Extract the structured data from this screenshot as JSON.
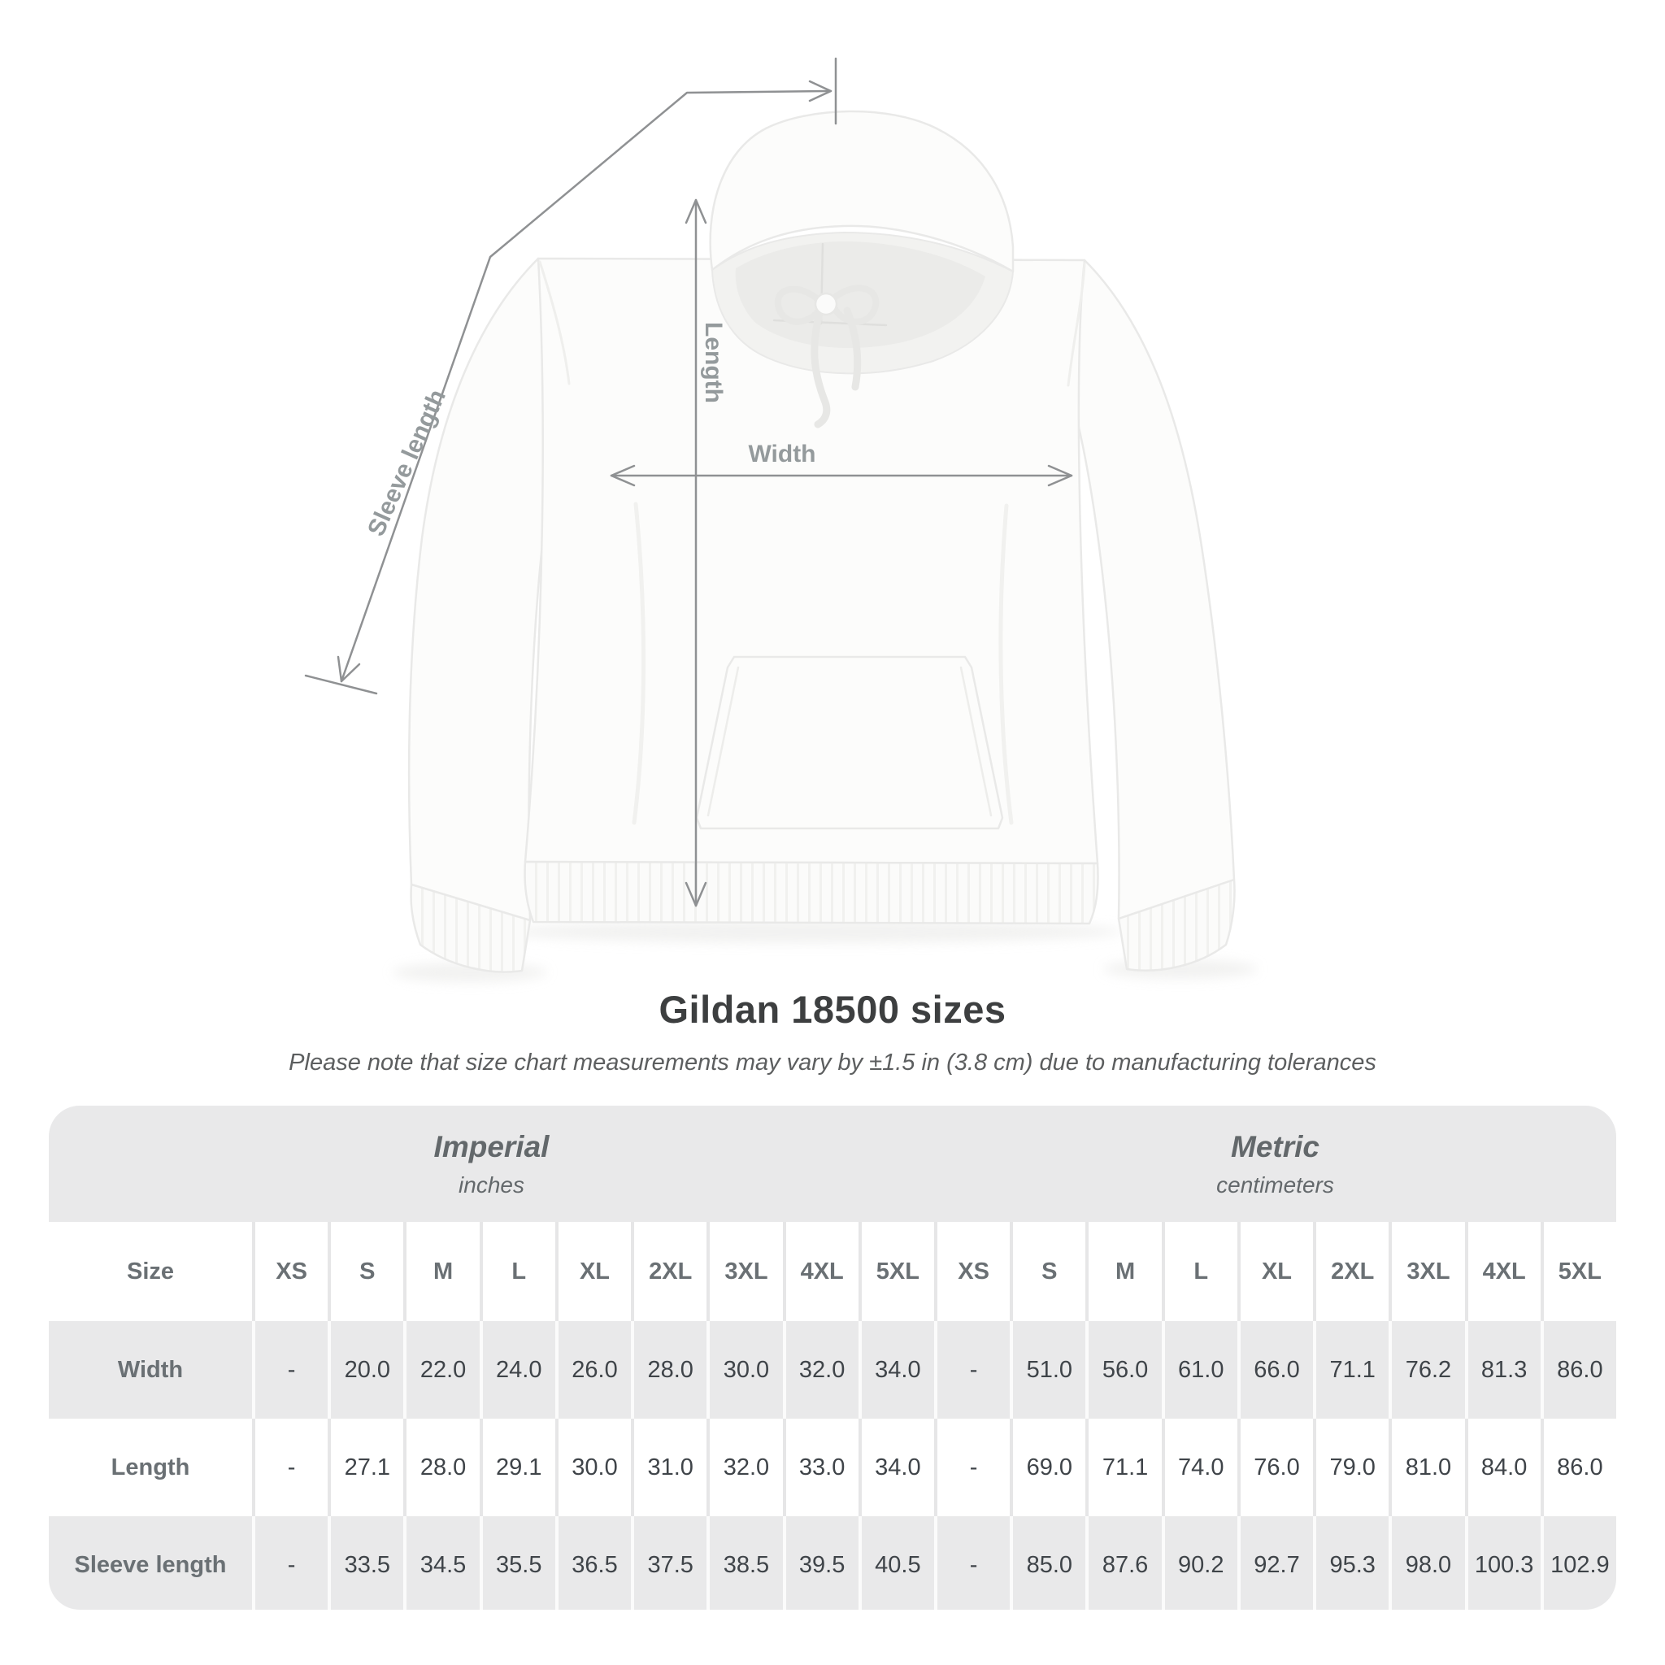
{
  "title": "Gildan 18500 sizes",
  "subtitle": "Please note that size chart measurements may vary by ±1.5 in (3.8 cm) due to manufacturing tolerances",
  "diagram": {
    "length_label": "Length",
    "width_label": "Width",
    "sleeve_label": "Sleeve length"
  },
  "colors": {
    "band": "#e9e9ea",
    "header_text": "#6a7074",
    "value_text": "#3f4449",
    "annotation_label": "#949a9c",
    "dimension_line": "#8f9193",
    "title_text": "#3d3f40"
  },
  "chart_data": {
    "type": "table",
    "title": "Gildan 18500 sizes",
    "note": "Measurements may vary by ±1.5 in (3.8 cm) due to manufacturing tolerances",
    "unit_groups": [
      {
        "name": "Imperial",
        "unit": "inches"
      },
      {
        "name": "Metric",
        "unit": "centimeters"
      }
    ],
    "size_header_label": "Size",
    "sizes": [
      "XS",
      "S",
      "M",
      "L",
      "XL",
      "2XL",
      "3XL",
      "4XL",
      "5XL"
    ],
    "rows": [
      {
        "label": "Width",
        "imperial": [
          "-",
          "20.0",
          "22.0",
          "24.0",
          "26.0",
          "28.0",
          "30.0",
          "32.0",
          "34.0"
        ],
        "metric": [
          "-",
          "51.0",
          "56.0",
          "61.0",
          "66.0",
          "71.1",
          "76.2",
          "81.3",
          "86.0"
        ]
      },
      {
        "label": "Length",
        "imperial": [
          "-",
          "27.1",
          "28.0",
          "29.1",
          "30.0",
          "31.0",
          "32.0",
          "33.0",
          "34.0"
        ],
        "metric": [
          "-",
          "69.0",
          "71.1",
          "74.0",
          "76.0",
          "79.0",
          "81.0",
          "84.0",
          "86.0"
        ]
      },
      {
        "label": "Sleeve length",
        "imperial": [
          "-",
          "33.5",
          "34.5",
          "35.5",
          "36.5",
          "37.5",
          "38.5",
          "39.5",
          "40.5"
        ],
        "metric": [
          "-",
          "85.0",
          "87.6",
          "90.2",
          "92.7",
          "95.3",
          "98.0",
          "100.3",
          "102.9"
        ]
      }
    ]
  }
}
